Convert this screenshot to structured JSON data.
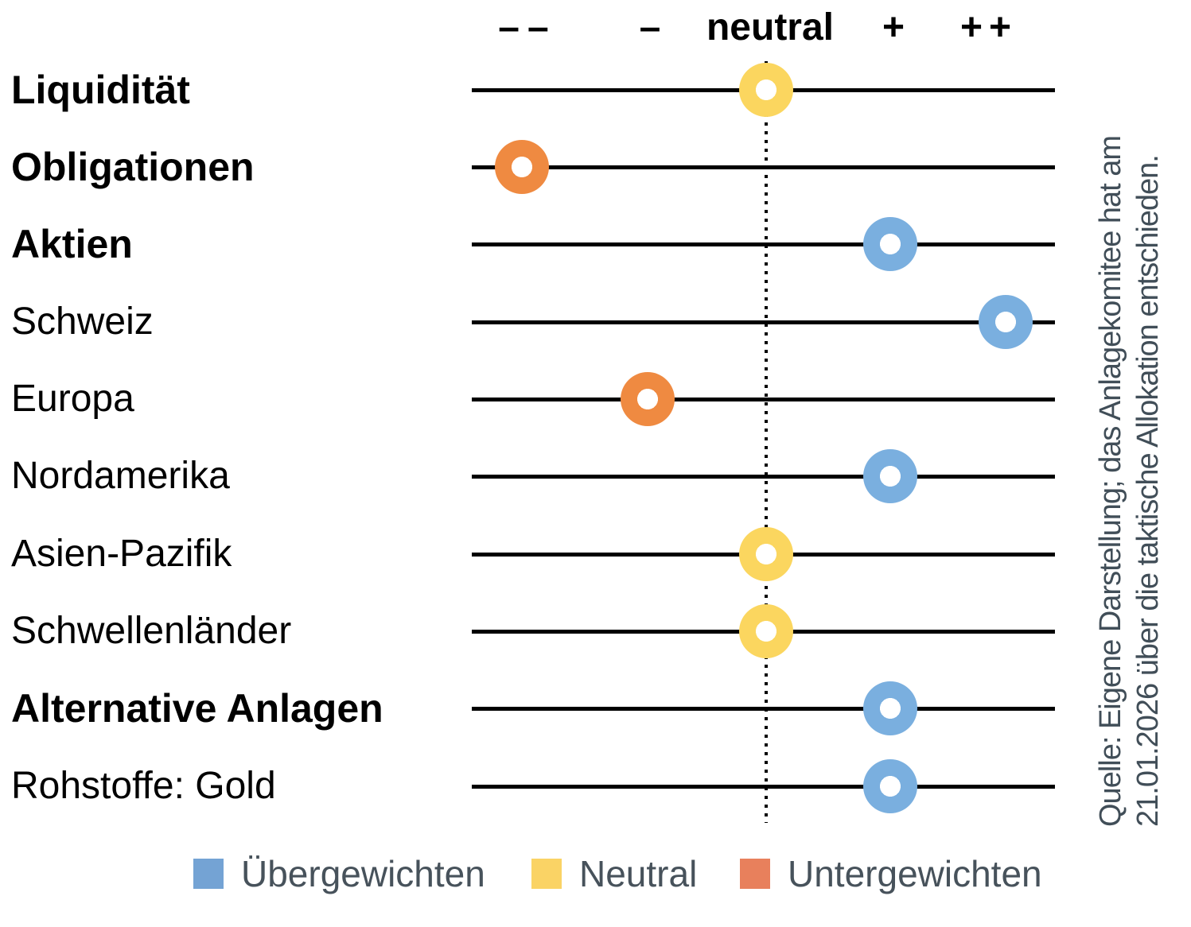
{
  "scale": {
    "labels": [
      "––",
      "–",
      "neutral",
      "+",
      "++"
    ]
  },
  "chart_data": {
    "type": "dot-scale",
    "title": "",
    "scale_labels": [
      "––",
      "–",
      "neutral",
      "+",
      "++"
    ],
    "scale_values": [
      -2,
      -1,
      0,
      1,
      2
    ],
    "neutral_guideline": true,
    "legend_position": "bottom",
    "rows": [
      {
        "label": "Liquidität",
        "bold": true,
        "value": 0,
        "status": "neutral"
      },
      {
        "label": "Obligationen",
        "bold": true,
        "value": -2,
        "status": "underweight"
      },
      {
        "label": "Aktien",
        "bold": true,
        "value": 1,
        "status": "overweight"
      },
      {
        "label": "Schweiz",
        "bold": false,
        "value": 2,
        "status": "overweight"
      },
      {
        "label": "Europa",
        "bold": false,
        "value": -1,
        "status": "underweight"
      },
      {
        "label": "Nordamerika",
        "bold": false,
        "value": 1,
        "status": "overweight"
      },
      {
        "label": "Asien-Pazifik",
        "bold": false,
        "value": 0,
        "status": "neutral"
      },
      {
        "label": "Schwellenländer",
        "bold": false,
        "value": 0,
        "status": "neutral"
      },
      {
        "label": "Alternative Anlagen",
        "bold": true,
        "value": 1,
        "status": "overweight"
      },
      {
        "label": "Rohstoffe: Gold",
        "bold": false,
        "value": 1,
        "status": "overweight"
      }
    ],
    "status_colors": {
      "overweight": "#7AAFDF",
      "neutral": "#FBD65F",
      "underweight": "#EF8A41"
    }
  },
  "legend": {
    "items": [
      {
        "label": "Übergewichten",
        "color": "#74A3D4"
      },
      {
        "label": "Neutral",
        "color": "#FAD365"
      },
      {
        "label": "Untergewichten",
        "color": "#E8805C"
      }
    ]
  },
  "source_note": {
    "line1": "Quelle: Eigene Darstellung; das Anlagekomitee hat am",
    "line2": "21.01.2026 über die taktische Allokation entschieden."
  }
}
